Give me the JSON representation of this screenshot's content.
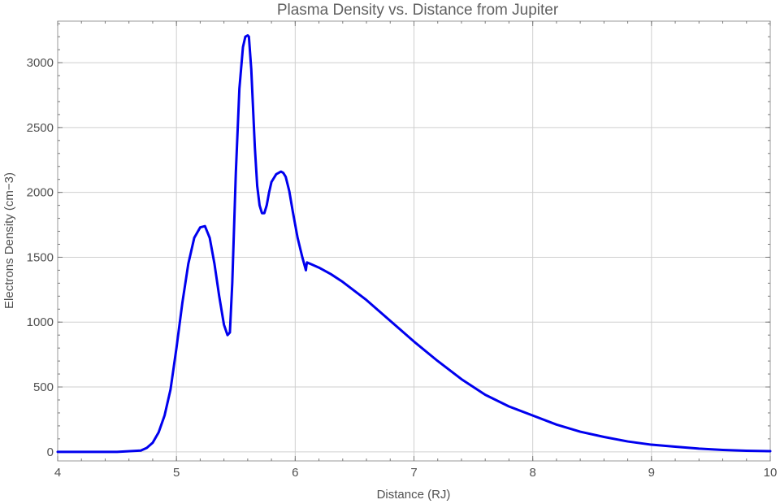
{
  "chart_data": {
    "type": "line",
    "title": "Plasma Density vs. Distance from Jupiter",
    "xlabel": "Distance (RJ)",
    "ylabel": "Electrons Density (cm−3)",
    "xlim": [
      4,
      10
    ],
    "ylim": [
      -70,
      3320
    ],
    "xticks": [
      4,
      5,
      6,
      7,
      8,
      9,
      10
    ],
    "yticks": [
      0,
      500,
      1000,
      1500,
      2000,
      2500,
      3000
    ],
    "grid": true,
    "line_color": "#0000ee",
    "series": [
      {
        "x": [
          4.0,
          4.5,
          4.7,
          4.75,
          4.8,
          4.85,
          4.9,
          4.95,
          5.0,
          5.05,
          5.1,
          5.15,
          5.2,
          5.24,
          5.28,
          5.32,
          5.36,
          5.4,
          5.43,
          5.45,
          5.47,
          5.5,
          5.53,
          5.56,
          5.58,
          5.6,
          5.61,
          5.63,
          5.66,
          5.68,
          5.7,
          5.72,
          5.74,
          5.76,
          5.78,
          5.8,
          5.84,
          5.88,
          5.9,
          5.92,
          5.95,
          5.98,
          6.02,
          6.06,
          6.09,
          6.095,
          6.1,
          6.2,
          6.3,
          6.4,
          6.5,
          6.6,
          6.7,
          6.8,
          6.9,
          7.0,
          7.2,
          7.4,
          7.6,
          7.8,
          8.0,
          8.2,
          8.4,
          8.6,
          8.8,
          9.0,
          9.2,
          9.4,
          9.6,
          9.8,
          10.0
        ],
        "y": [
          0,
          0,
          10,
          30,
          70,
          150,
          280,
          480,
          800,
          1150,
          1450,
          1650,
          1730,
          1740,
          1650,
          1450,
          1200,
          980,
          900,
          920,
          1300,
          2150,
          2800,
          3120,
          3200,
          3210,
          3200,
          2950,
          2350,
          2050,
          1900,
          1840,
          1840,
          1900,
          2000,
          2080,
          2140,
          2160,
          2150,
          2120,
          2010,
          1850,
          1650,
          1500,
          1400,
          1440,
          1460,
          1420,
          1370,
          1310,
          1240,
          1170,
          1090,
          1010,
          930,
          850,
          700,
          560,
          440,
          350,
          280,
          210,
          155,
          115,
          80,
          55,
          40,
          25,
          15,
          8,
          5
        ]
      }
    ]
  }
}
